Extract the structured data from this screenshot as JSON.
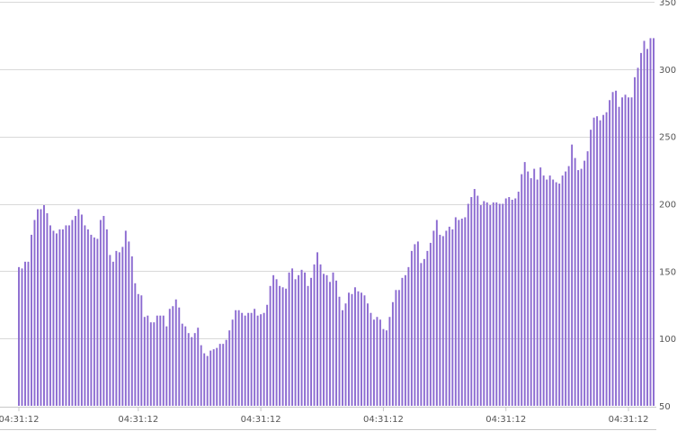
{
  "chart_data": {
    "type": "bar",
    "title": "",
    "xlabel": "",
    "ylabel": "",
    "ylim": [
      50,
      350
    ],
    "y_ticks": [
      50,
      100,
      150,
      200,
      250,
      300,
      350
    ],
    "y_axis_position": "right",
    "grid": true,
    "legend": "none",
    "bar_color": "#8c6bd1",
    "x_tick_labels": [
      "04:31:12",
      "04:31:12",
      "04:31:12",
      "04:31:12",
      "04:31:12",
      "04:31:12"
    ],
    "x_tick_bar_indices": [
      0,
      38,
      77,
      116,
      155,
      194
    ],
    "values": [
      153,
      152,
      157,
      157,
      177,
      188,
      196,
      196,
      199,
      193,
      184,
      180,
      178,
      181,
      181,
      184,
      184,
      188,
      191,
      196,
      192,
      184,
      181,
      177,
      175,
      174,
      188,
      191,
      181,
      162,
      157,
      165,
      164,
      168,
      180,
      172,
      161,
      141,
      133,
      132,
      116,
      117,
      112,
      112,
      117,
      117,
      117,
      109,
      122,
      124,
      129,
      123,
      111,
      109,
      104,
      101,
      104,
      108,
      95,
      89,
      87,
      91,
      92,
      93,
      96,
      96,
      99,
      106,
      114,
      121,
      121,
      119,
      117,
      119,
      119,
      122,
      117,
      118,
      119,
      125,
      139,
      147,
      144,
      139,
      138,
      137,
      149,
      152,
      144,
      147,
      151,
      149,
      139,
      145,
      155,
      164,
      155,
      148,
      147,
      142,
      149,
      143,
      131,
      121,
      126,
      134,
      133,
      138,
      135,
      134,
      132,
      126,
      119,
      114,
      116,
      114,
      107,
      106,
      116,
      127,
      136,
      136,
      145,
      147,
      153,
      165,
      170,
      172,
      156,
      159,
      165,
      171,
      180,
      188,
      177,
      176,
      180,
      183,
      181,
      190,
      188,
      189,
      190,
      200,
      205,
      211,
      206,
      199,
      202,
      201,
      199,
      201,
      201,
      200,
      200,
      204,
      205,
      203,
      204,
      209,
      222,
      231,
      224,
      219,
      226,
      218,
      227,
      221,
      218,
      221,
      218,
      216,
      215,
      221,
      224,
      228,
      244,
      234,
      225,
      226,
      232,
      239,
      255,
      264,
      265,
      262,
      266,
      268,
      277,
      283,
      284,
      272,
      279,
      281,
      279,
      279,
      294,
      301,
      312,
      321,
      315,
      323,
      323
    ]
  }
}
